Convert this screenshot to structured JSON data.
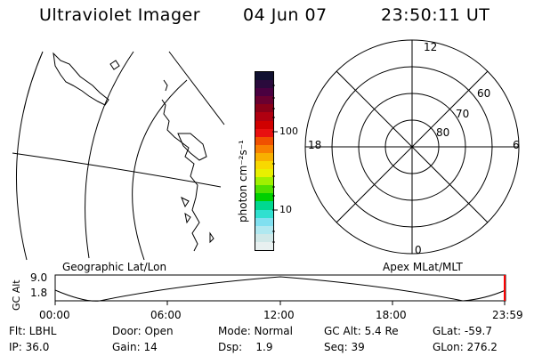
{
  "header": {
    "instrument": "Ultraviolet Imager",
    "date": "04 Jun 07",
    "time": "23:50:11 UT"
  },
  "colorbar": {
    "unit_label": "photon cm⁻²s⁻¹",
    "tick_labels": [
      "100",
      "10"
    ],
    "colors_top_to_bottom": [
      "#101030",
      "#2a0a3c",
      "#4a0040",
      "#6a0030",
      "#8a0018",
      "#b00010",
      "#d00000",
      "#e81010",
      "#f05000",
      "#f88000",
      "#f8b000",
      "#f8d800",
      "#e8f000",
      "#a0f000",
      "#50e000",
      "#00d000",
      "#00d890",
      "#30e0d0",
      "#80e0f0",
      "#b0e8f0",
      "#d0e8e8",
      "#e8f0f0"
    ]
  },
  "polar_plot": {
    "mlt_labels": {
      "top": "12",
      "left": "18",
      "right": "6",
      "bottom": "0"
    },
    "lat_labels": [
      "60",
      "70",
      "80"
    ]
  },
  "timeline": {
    "left_title": "Geographic Lat/Lon",
    "right_title": "Apex MLat/MLT",
    "y_label": "GC Alt",
    "y_ticks": [
      "9.0",
      "1.8"
    ],
    "x_ticks": [
      "00:00",
      "06:00",
      "12:00",
      "18:00",
      "23:59"
    ],
    "current_marker_color": "#ff0000"
  },
  "status": {
    "flt": "Flt: LBHL",
    "door": "Door: Open",
    "mode": "Mode: Normal",
    "gc_alt": "GC Alt: 5.4 Re",
    "glat": "GLat: -59.7",
    "ip": "IP: 36.0",
    "gain": "Gain: 14",
    "dsp": "Dsp:    1.9",
    "seq": "Seq: 39",
    "glon": "GLon: 276.2"
  }
}
